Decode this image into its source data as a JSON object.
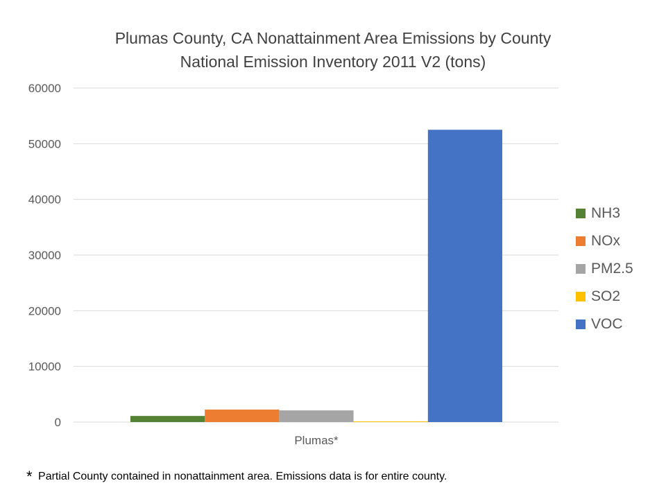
{
  "chart_data": {
    "type": "bar",
    "title_line1": "Plumas County, CA Nonattainment Area Emissions by County",
    "title_line2": "National Emission Inventory 2011 V2 (tons)",
    "categories": [
      "Plumas*"
    ],
    "series": [
      {
        "name": "NH3",
        "color": "#548235",
        "values": [
          1100
        ]
      },
      {
        "name": "NOx",
        "color": "#ED7D31",
        "values": [
          2250
        ]
      },
      {
        "name": "PM2.5",
        "color": "#A5A5A5",
        "values": [
          2100
        ]
      },
      {
        "name": "SO2",
        "color": "#FFC000",
        "values": [
          130
        ]
      },
      {
        "name": "VOC",
        "color": "#4472C4",
        "values": [
          52500
        ]
      }
    ],
    "ylim": [
      0,
      60000
    ],
    "yticks": [
      "0",
      "10000",
      "20000",
      "30000",
      "40000",
      "50000",
      "60000"
    ],
    "grid": true,
    "legend_position": "right"
  },
  "footnote": {
    "star": "*",
    "text": "Partial County contained in nonattainment area.  Emissions data is for entire county."
  }
}
